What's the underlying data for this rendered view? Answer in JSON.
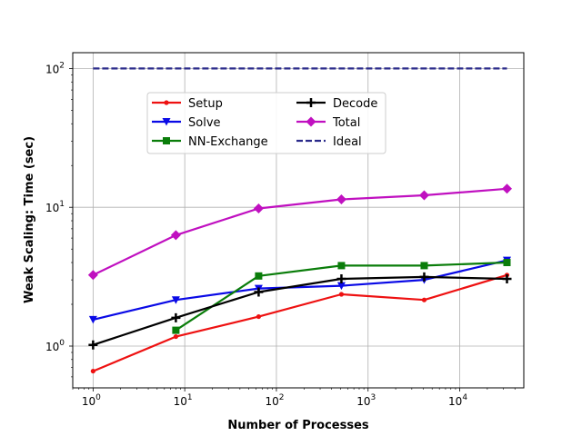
{
  "chart_data": {
    "type": "line",
    "xlabel": "Number of Processes",
    "ylabel": "Weak Scaling: Time (sec)",
    "xscale": "log",
    "yscale": "log",
    "xlim": [
      0.6,
      50000
    ],
    "ylim": [
      0.5,
      130
    ],
    "grid": true,
    "legend_position": "upper-center",
    "x_tick_labels": [
      "10^0",
      "10^1",
      "10^2",
      "10^3",
      "10^4"
    ],
    "y_tick_labels": [
      "10^0",
      "10^1",
      "10^2"
    ],
    "series": [
      {
        "name": "Setup",
        "color": "#ee1111",
        "marker": "dot",
        "x": [
          1,
          8,
          64,
          512,
          4096,
          32768
        ],
        "y": [
          0.66,
          1.17,
          1.63,
          2.36,
          2.15,
          3.25
        ]
      },
      {
        "name": "Solve",
        "color": "#0a0ae6",
        "marker": "triangle-down",
        "x": [
          1,
          8,
          64,
          512,
          4096,
          32768
        ],
        "y": [
          1.55,
          2.15,
          2.6,
          2.72,
          3.0,
          4.15
        ]
      },
      {
        "name": "NN-Exchange",
        "color": "#0a7d0a",
        "marker": "square",
        "x": [
          8,
          64,
          512,
          4096,
          32768
        ],
        "y": [
          1.3,
          3.2,
          3.8,
          3.8,
          4.0
        ]
      },
      {
        "name": "Decode",
        "color": "#000000",
        "marker": "plus",
        "x": [
          1,
          8,
          64,
          512,
          4096,
          32768
        ],
        "y": [
          1.02,
          1.6,
          2.45,
          3.05,
          3.15,
          3.05
        ]
      },
      {
        "name": "Total",
        "color": "#c010c0",
        "marker": "diamond",
        "x": [
          1,
          8,
          64,
          512,
          4096,
          32768
        ],
        "y": [
          3.25,
          6.3,
          9.8,
          11.4,
          12.2,
          13.6
        ]
      },
      {
        "name": "Ideal",
        "color": "#2a2a8a",
        "marker": "none",
        "dash": true,
        "x": [
          1,
          32768
        ],
        "y": [
          100,
          100
        ]
      }
    ]
  }
}
